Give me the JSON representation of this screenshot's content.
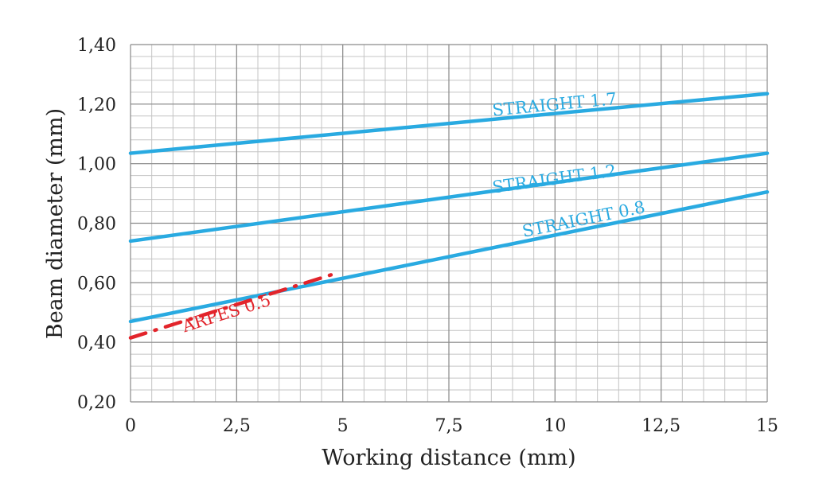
{
  "chart_data": {
    "type": "line",
    "xlabel": "Working distance (mm)",
    "ylabel": "Beam diameter (mm)",
    "xlim": [
      0,
      15
    ],
    "ylim": [
      0.2,
      1.4
    ],
    "x_ticks": [
      {
        "value": 0,
        "label": "0"
      },
      {
        "value": 2.5,
        "label": "2,5"
      },
      {
        "value": 5,
        "label": "5"
      },
      {
        "value": 7.5,
        "label": "7,5"
      },
      {
        "value": 10,
        "label": "10"
      },
      {
        "value": 12.5,
        "label": "12,5"
      },
      {
        "value": 15,
        "label": "15"
      }
    ],
    "y_ticks": [
      {
        "value": 0.2,
        "label": "0,20"
      },
      {
        "value": 0.4,
        "label": "0,40"
      },
      {
        "value": 0.6,
        "label": "0,60"
      },
      {
        "value": 0.8,
        "label": "0,80"
      },
      {
        "value": 1.0,
        "label": "1,00"
      },
      {
        "value": 1.2,
        "label": "1,20"
      },
      {
        "value": 1.4,
        "label": "1,40"
      }
    ],
    "grid": true,
    "minor_grid_step_x": 0.5,
    "minor_grid_step_y": 0.04,
    "series": [
      {
        "name": "STRAIGHT 1.7",
        "color": "#29aae1",
        "style": "solid",
        "x": [
          0,
          15
        ],
        "y": [
          1.035,
          1.235
        ],
        "label_at": {
          "x": 10.0,
          "y": 1.18
        }
      },
      {
        "name": "STRAIGHT 1.2",
        "color": "#29aae1",
        "style": "solid",
        "x": [
          0,
          15
        ],
        "y": [
          0.74,
          1.035
        ],
        "label_at": {
          "x": 10.0,
          "y": 0.93
        }
      },
      {
        "name": "STRAIGHT 0.8",
        "color": "#29aae1",
        "style": "solid",
        "x": [
          0,
          15
        ],
        "y": [
          0.47,
          0.905
        ],
        "label_at": {
          "x": 10.7,
          "y": 0.795
        }
      },
      {
        "name": "ARPES 0.5",
        "color": "#e2242b",
        "style": "dashdot",
        "x": [
          0,
          4.8
        ],
        "y": [
          0.415,
          0.63
        ],
        "label_at": {
          "x": 2.3,
          "y": 0.48
        }
      }
    ]
  }
}
